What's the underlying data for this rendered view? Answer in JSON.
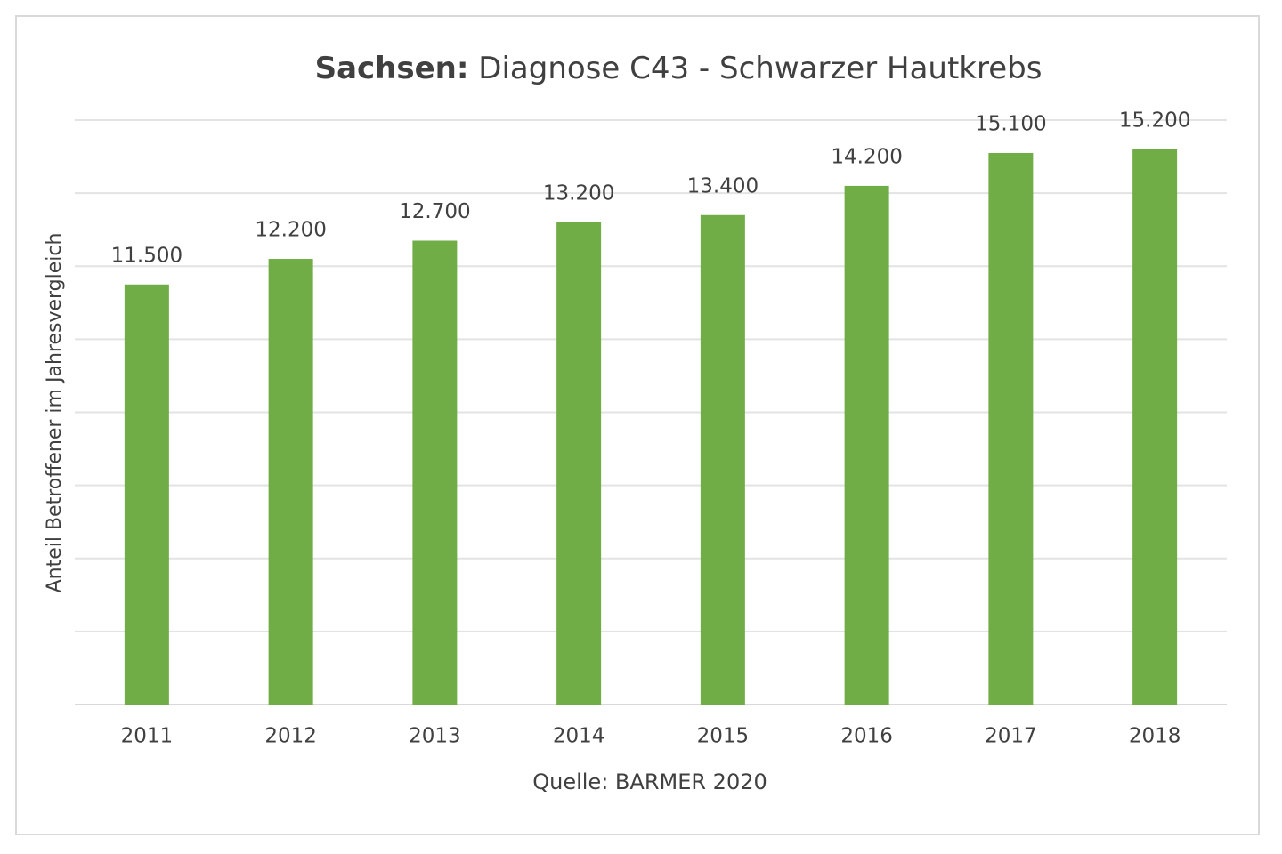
{
  "chart_data": {
    "type": "bar",
    "title": [
      "Sachsen:",
      "Diagnose C43 - Schwarzer Hautkrebs"
    ],
    "y_label": "Anteil Betroffener im Jahresvergleich",
    "source": "Quelle: BARMER 2020",
    "categories": [
      "2011",
      "2012",
      "2013",
      "2014",
      "2015",
      "2016",
      "2017",
      "2018"
    ],
    "values": [
      11500,
      12200,
      12700,
      13200,
      13400,
      14200,
      15100,
      15200
    ],
    "value_labels": [
      "11.500",
      "12.200",
      "12.700",
      "13.200",
      "13.400",
      "14.200",
      "15.100",
      "15.200"
    ],
    "color": "#70ad47",
    "ylim": [
      0,
      16000
    ],
    "yticks": [
      0,
      2000,
      4000,
      6000,
      8000,
      10000,
      12000,
      14000,
      16000
    ],
    "grid": true
  }
}
